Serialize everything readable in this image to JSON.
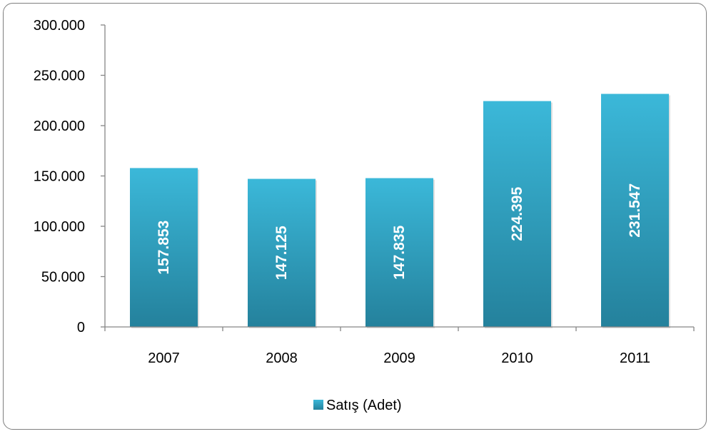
{
  "chart_data": {
    "type": "bar",
    "categories": [
      "2007",
      "2008",
      "2009",
      "2010",
      "2011"
    ],
    "series": [
      {
        "name": "Satış (Adet)",
        "values": [
          157853,
          147125,
          147835,
          224395,
          231547
        ],
        "data_labels": [
          "157.853",
          "147.125",
          "147.835",
          "224.395",
          "231.547"
        ]
      }
    ],
    "ylim": [
      0,
      300000
    ],
    "y_ticks": [
      0,
      50000,
      100000,
      150000,
      200000,
      250000,
      300000
    ],
    "y_tick_labels": [
      "0",
      "50.000",
      "100.000",
      "150.000",
      "200.000",
      "250.000",
      "300.000"
    ],
    "grid": false,
    "legend_position": "bottom",
    "bar_color_top": "#3bb8d9",
    "bar_color_bottom": "#24819c"
  }
}
